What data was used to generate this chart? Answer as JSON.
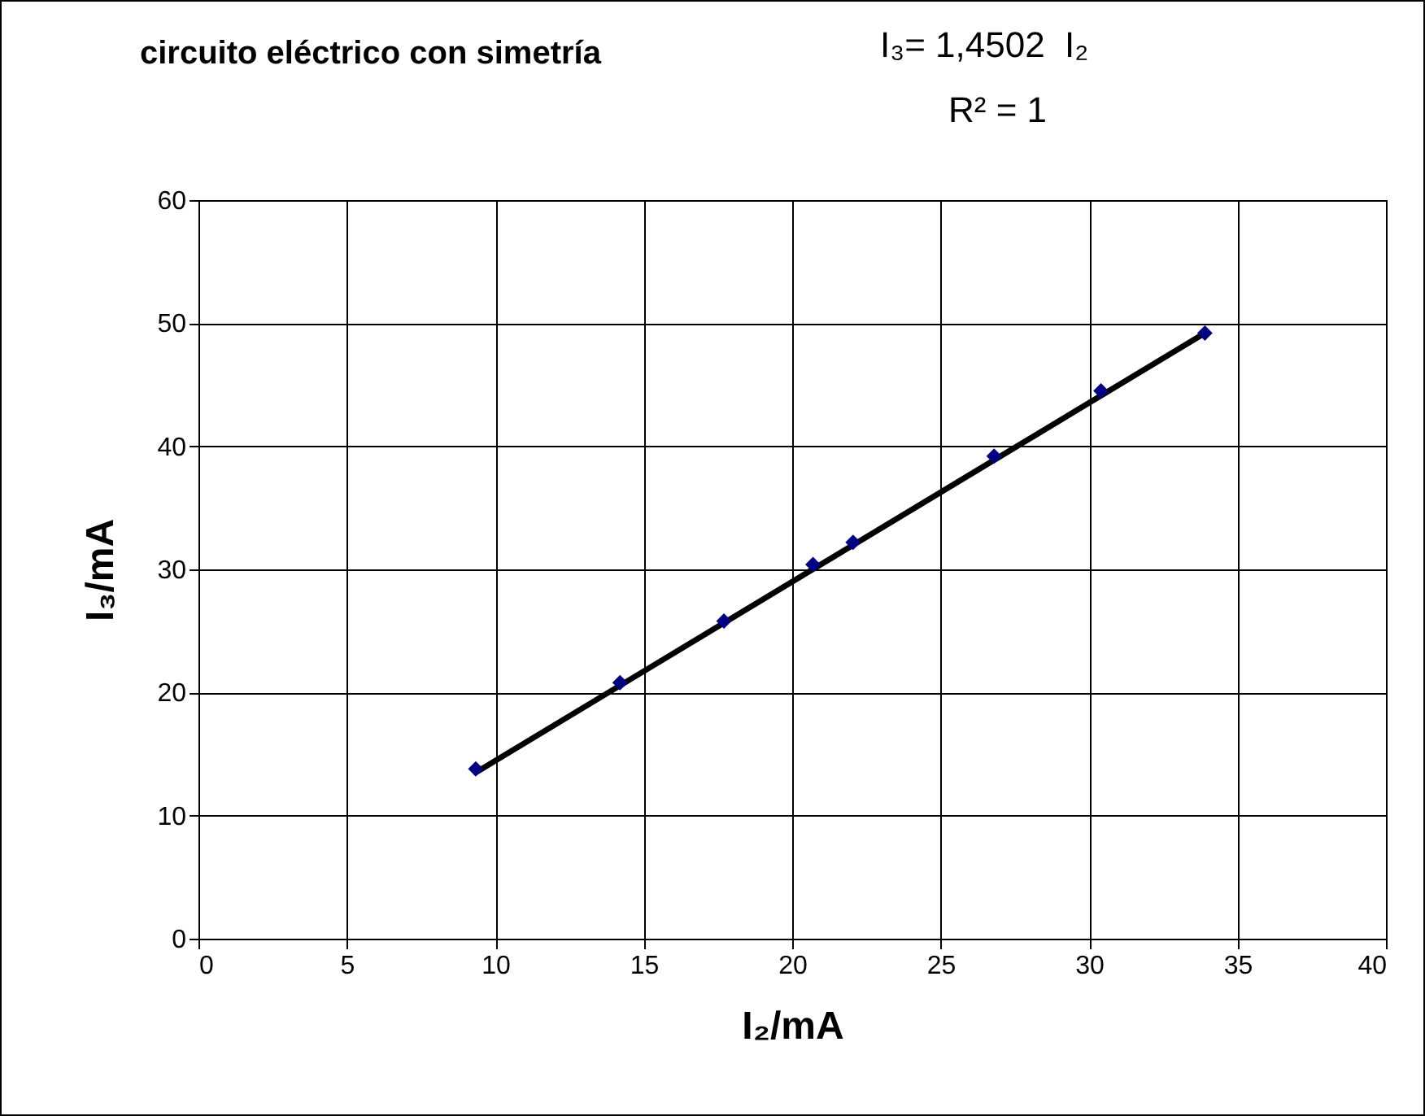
{
  "chart_data": {
    "type": "scatter",
    "title": "circuito eléctrico con simetría",
    "xlabel": "I₂/mA",
    "ylabel": "I₃/mA",
    "annotations": [
      "I₃= 1,4502  I₂",
      "R² = 1"
    ],
    "x": [
      9.34,
      14.2,
      17.7,
      20.7,
      22.05,
      26.8,
      30.4,
      33.9
    ],
    "series": [
      {
        "color": "#000080",
        "marker": "diamond",
        "values": [
          13.8,
          20.8,
          25.8,
          30.4,
          32.2,
          39.2,
          44.5,
          49.2
        ]
      },
      {
        "type": "line",
        "color": "#000000",
        "x": [
          9.34,
          33.9
        ],
        "values": [
          13.5,
          49.2
        ]
      }
    ],
    "xlim": [
      0,
      40
    ],
    "ylim": [
      0,
      60
    ],
    "xticks": [
      0,
      5,
      10,
      15,
      20,
      25,
      30,
      35,
      40
    ],
    "yticks": [
      0,
      10,
      20,
      30,
      40,
      50,
      60
    ],
    "grid": true
  }
}
